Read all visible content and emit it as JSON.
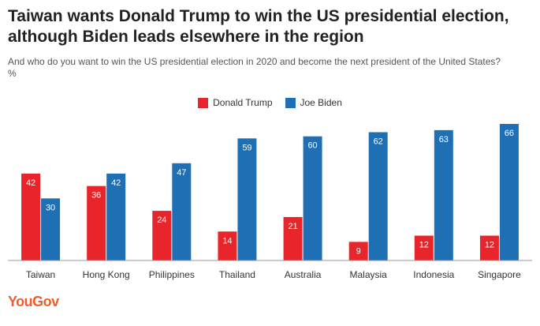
{
  "header": {
    "title": "Taiwan wants Donald Trump to win the US presidential election, although Biden leads elsewhere in the region",
    "subtitle": "And who do you want to win the US presidential election in 2020 and become the next president of the United States?",
    "unit": "%"
  },
  "brand": {
    "logo_text": "YouGov"
  },
  "colors": {
    "trump": "#e8252a",
    "biden": "#1f6fb5",
    "axis": "#999999"
  },
  "chart_data": {
    "type": "bar",
    "title": "Taiwan wants Donald Trump to win the US presidential election, although Biden leads elsewhere in the region",
    "xlabel": "",
    "ylabel": "%",
    "ylim": [
      0,
      70
    ],
    "grid": false,
    "legend": "top-center",
    "categories": [
      "Taiwan",
      "Hong Kong",
      "Philippines",
      "Thailand",
      "Australia",
      "Malaysia",
      "Indonesia",
      "Singapore"
    ],
    "series": [
      {
        "name": "Donald Trump",
        "color": "#e8252a",
        "values": [
          42,
          36,
          24,
          14,
          21,
          9,
          12,
          12
        ]
      },
      {
        "name": "Joe Biden",
        "color": "#1f6fb5",
        "values": [
          30,
          42,
          47,
          59,
          60,
          62,
          63,
          66
        ]
      }
    ]
  }
}
